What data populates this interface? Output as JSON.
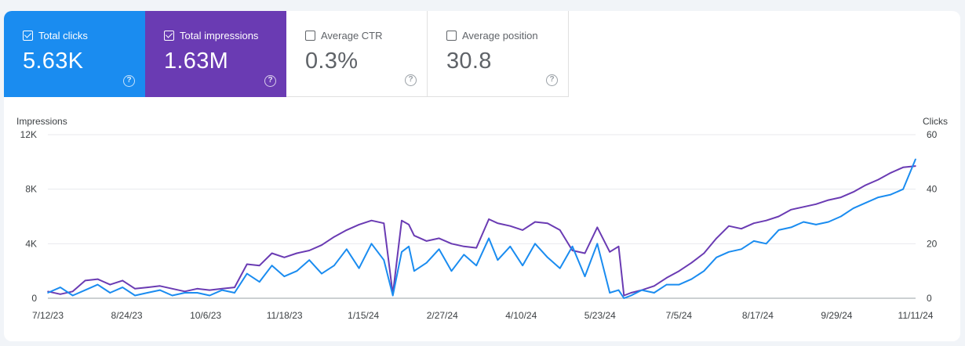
{
  "metrics": [
    {
      "label": "Total clicks",
      "value": "5.63K",
      "checked": true
    },
    {
      "label": "Total impressions",
      "value": "1.63M",
      "checked": true
    },
    {
      "label": "Average CTR",
      "value": "0.3%",
      "checked": false
    },
    {
      "label": "Average position",
      "value": "30.8",
      "checked": false
    }
  ],
  "help_glyph": "?",
  "colors": {
    "clicks": "#1a8cf0",
    "impressions": "#6a3bb3",
    "grid": "#e8eaed"
  },
  "chart_data": {
    "type": "line",
    "ylabel_left": "Impressions",
    "ylabel_right": "Clicks",
    "y_left_ticks": [
      "0",
      "4K",
      "8K",
      "12K"
    ],
    "y_left_range": [
      0,
      12000
    ],
    "y_right_ticks": [
      "0",
      "20",
      "40",
      "60"
    ],
    "y_right_range": [
      0,
      60
    ],
    "x_range": [
      "2023-07-12",
      "2024-11-11"
    ],
    "x_ticks": [
      "7/12/23",
      "8/24/23",
      "10/6/23",
      "11/18/23",
      "1/15/24",
      "2/27/24",
      "4/10/24",
      "5/23/24",
      "7/5/24",
      "8/17/24",
      "9/29/24",
      "11/11/24"
    ],
    "grid": true,
    "series": [
      {
        "name": "Impressions",
        "axis": "left",
        "x": [
          "2023-07-12",
          "2023-07-19",
          "2023-07-26",
          "2023-08-02",
          "2023-08-09",
          "2023-08-16",
          "2023-08-23",
          "2023-08-30",
          "2023-09-06",
          "2023-09-13",
          "2023-09-20",
          "2023-09-27",
          "2023-10-04",
          "2023-10-11",
          "2023-10-18",
          "2023-10-25",
          "2023-11-01",
          "2023-11-08",
          "2023-11-15",
          "2023-11-22",
          "2023-11-29",
          "2023-12-06",
          "2023-12-13",
          "2023-12-20",
          "2023-12-27",
          "2024-01-03",
          "2024-01-10",
          "2024-01-17",
          "2024-01-22",
          "2024-01-27",
          "2024-01-31",
          "2024-02-03",
          "2024-02-10",
          "2024-02-17",
          "2024-02-24",
          "2024-03-02",
          "2024-03-09",
          "2024-03-16",
          "2024-03-21",
          "2024-03-28",
          "2024-04-04",
          "2024-04-11",
          "2024-04-18",
          "2024-04-25",
          "2024-05-02",
          "2024-05-09",
          "2024-05-16",
          "2024-05-23",
          "2024-05-28",
          "2024-05-31",
          "2024-06-04",
          "2024-06-10",
          "2024-06-17",
          "2024-06-24",
          "2024-07-01",
          "2024-07-08",
          "2024-07-15",
          "2024-07-22",
          "2024-07-29",
          "2024-08-05",
          "2024-08-12",
          "2024-08-19",
          "2024-08-26",
          "2024-09-02",
          "2024-09-09",
          "2024-09-16",
          "2024-09-23",
          "2024-09-30",
          "2024-10-07",
          "2024-10-14",
          "2024-10-21",
          "2024-10-28",
          "2024-11-04",
          "2024-11-11"
        ],
        "values": [
          500,
          300,
          500,
          1300,
          1400,
          1000,
          1300,
          700,
          800,
          900,
          700,
          500,
          700,
          600,
          700,
          800,
          2500,
          2400,
          3300,
          3000,
          3300,
          3500,
          3900,
          4500,
          5000,
          5400,
          5700,
          5500,
          300,
          5700,
          5400,
          4600,
          4200,
          4400,
          4000,
          3800,
          3700,
          5800,
          5500,
          5300,
          5000,
          5600,
          5500,
          5000,
          3500,
          3300,
          5200,
          3400,
          3800,
          200,
          400,
          600,
          900,
          1500,
          2000,
          2600,
          3300,
          4400,
          5300,
          5100,
          5500,
          5700,
          6000,
          6500,
          6700,
          6900,
          7200,
          7400,
          7800,
          8300,
          8700,
          9200,
          9600,
          9700
        ]
      },
      {
        "name": "Clicks",
        "axis": "right",
        "x": [
          "2023-07-12",
          "2023-07-19",
          "2023-07-26",
          "2023-08-02",
          "2023-08-09",
          "2023-08-16",
          "2023-08-23",
          "2023-08-30",
          "2023-09-06",
          "2023-09-13",
          "2023-09-20",
          "2023-09-27",
          "2023-10-04",
          "2023-10-11",
          "2023-10-18",
          "2023-10-25",
          "2023-11-01",
          "2023-11-08",
          "2023-11-15",
          "2023-11-22",
          "2023-11-29",
          "2023-12-06",
          "2023-12-13",
          "2023-12-20",
          "2023-12-27",
          "2024-01-03",
          "2024-01-10",
          "2024-01-17",
          "2024-01-22",
          "2024-01-27",
          "2024-01-31",
          "2024-02-03",
          "2024-02-10",
          "2024-02-17",
          "2024-02-24",
          "2024-03-02",
          "2024-03-09",
          "2024-03-16",
          "2024-03-21",
          "2024-03-28",
          "2024-04-04",
          "2024-04-11",
          "2024-04-18",
          "2024-04-25",
          "2024-05-02",
          "2024-05-09",
          "2024-05-16",
          "2024-05-23",
          "2024-05-28",
          "2024-05-31",
          "2024-06-04",
          "2024-06-10",
          "2024-06-17",
          "2024-06-24",
          "2024-07-01",
          "2024-07-08",
          "2024-07-15",
          "2024-07-22",
          "2024-07-29",
          "2024-08-05",
          "2024-08-12",
          "2024-08-19",
          "2024-08-26",
          "2024-09-02",
          "2024-09-09",
          "2024-09-16",
          "2024-09-23",
          "2024-09-30",
          "2024-10-07",
          "2024-10-14",
          "2024-10-21",
          "2024-10-28",
          "2024-11-04",
          "2024-11-11"
        ],
        "values": [
          2,
          4,
          1,
          3,
          5,
          2,
          4,
          1,
          2,
          3,
          1,
          2,
          2,
          1,
          3,
          2,
          9,
          6,
          12,
          8,
          10,
          14,
          9,
          12,
          18,
          11,
          20,
          14,
          1,
          17,
          19,
          10,
          13,
          18,
          10,
          16,
          12,
          22,
          14,
          19,
          12,
          20,
          15,
          11,
          19,
          8,
          20,
          2,
          3,
          0,
          1,
          3,
          2,
          5,
          5,
          7,
          10,
          15,
          17,
          18,
          21,
          20,
          25,
          26,
          28,
          27,
          28,
          30,
          33,
          35,
          37,
          38,
          40,
          51
        ]
      }
    ]
  }
}
